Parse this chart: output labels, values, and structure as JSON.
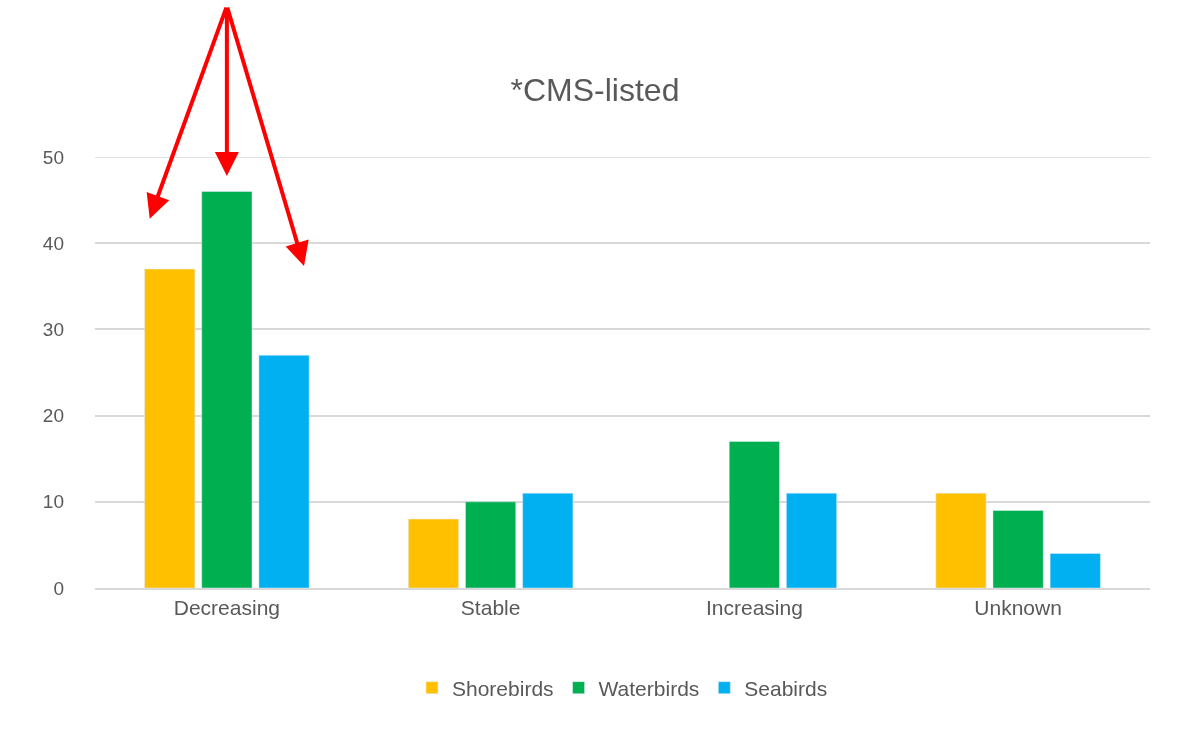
{
  "chart_data": {
    "type": "bar",
    "title": "*CMS-listed",
    "categories": [
      "Decreasing",
      "Stable",
      "Increasing",
      "Unknown"
    ],
    "series": [
      {
        "name": "Shorebirds",
        "color": "#ffc000",
        "values": [
          37,
          8,
          null,
          11
        ]
      },
      {
        "name": "Waterbirds",
        "color": "#00b050",
        "values": [
          46,
          10,
          17,
          9
        ]
      },
      {
        "name": "Seabirds",
        "color": "#00b0f0",
        "values": [
          27,
          11,
          11,
          4
        ]
      }
    ],
    "ylim": [
      0,
      50
    ],
    "yticks": [
      0,
      10,
      20,
      30,
      40,
      50
    ],
    "grid": "y",
    "legend": "bottom"
  }
}
